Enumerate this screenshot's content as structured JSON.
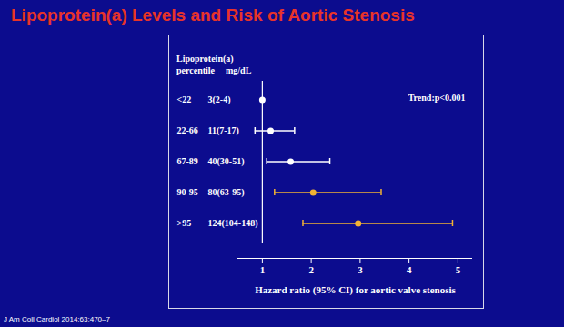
{
  "chart_data": {
    "type": "forest",
    "title": "Lipoprotein(a) Levels and Risk of Aortic Stenosis",
    "source": "J Am Coll Cardiol 2014;63:470–7",
    "column_group": "Lipoprotein(a)",
    "column_headers": [
      "percentile",
      "mg/dL"
    ],
    "categories": [
      "<22",
      "22-66",
      "67-89",
      "90-95",
      ">95"
    ],
    "mg_dl": [
      "3(2-4)",
      "11(7-17)",
      "40(30-51)",
      "80(63-95)",
      "124(104-148)"
    ],
    "values": [
      1,
      1.17,
      1.58,
      2.04,
      2.96
    ],
    "ci_low": [
      null,
      0.85,
      1.09,
      1.25,
      1.83
    ],
    "ci_high": [
      null,
      1.66,
      2.38,
      3.43,
      4.89
    ],
    "colors": [
      "#ffffff",
      "#ffffff",
      "#ffffff",
      "#f2b233",
      "#f2b233"
    ],
    "xlabel": "Hazard ratio (95% CI) for aortic valve stenosis",
    "xlim": [
      0.5,
      5.3
    ],
    "xticks": [
      1,
      2,
      3,
      4,
      5
    ],
    "annotation": "Trend:p<0.001",
    "tick_labels": "x"
  }
}
